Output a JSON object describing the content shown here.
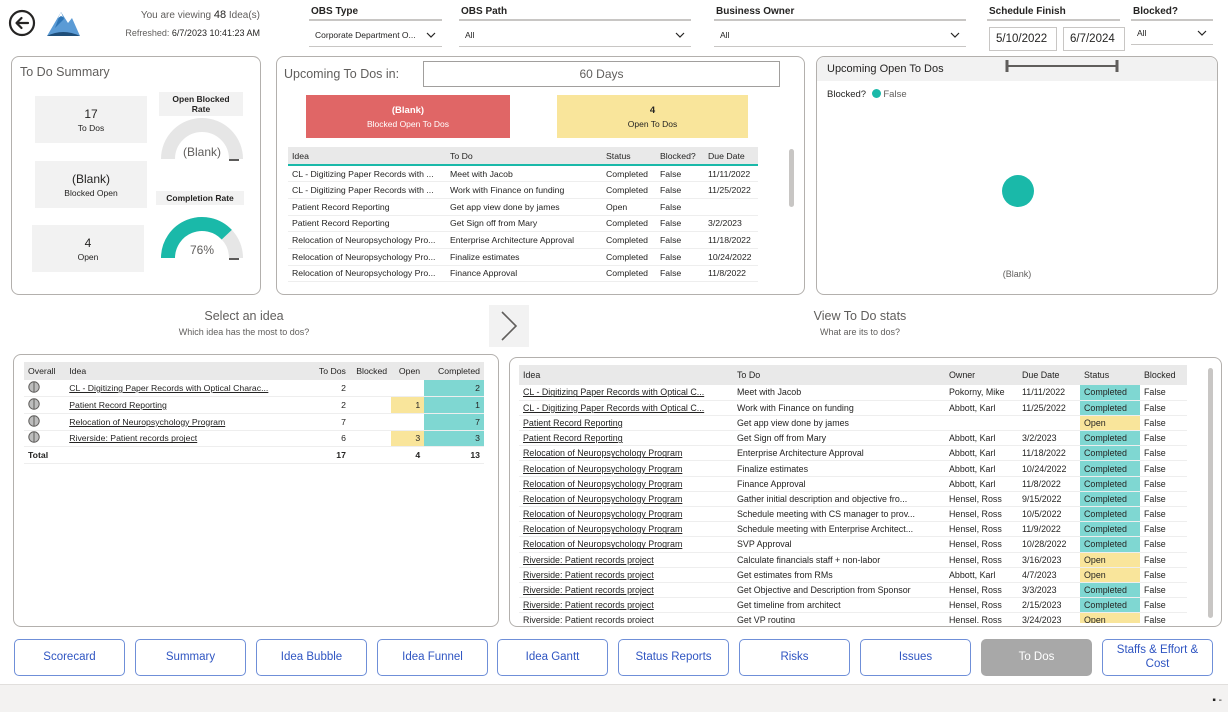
{
  "header": {
    "viewing_prefix": "You are viewing",
    "viewing_count": "48",
    "viewing_suffix": "Idea(s)",
    "refreshed_label": "Refreshed:",
    "refreshed_value": "6/7/2023 10:41:23 AM"
  },
  "filters": {
    "obs_type": {
      "label": "OBS Type",
      "value": "Corporate Department O..."
    },
    "obs_path": {
      "label": "OBS Path",
      "value": "All"
    },
    "business_owner": {
      "label": "Business Owner",
      "value": "All"
    },
    "schedule_finish": {
      "label": "Schedule Finish",
      "start": "5/10/2022",
      "end": "6/7/2024"
    },
    "blocked": {
      "label": "Blocked?",
      "value": "All"
    }
  },
  "todo_summary": {
    "title": "To Do Summary",
    "todos_value": "17",
    "todos_label": "To Dos",
    "blocked_value": "(Blank)",
    "blocked_label": "Blocked Open",
    "open_value": "4",
    "open_label": "Open",
    "open_blocked_rate_title": "Open Blocked Rate",
    "open_blocked_rate_value": "(Blank)",
    "completion_rate_title": "Completion Rate",
    "completion_rate_value": "76%",
    "completion_rate_fraction": 0.76
  },
  "upcoming": {
    "label": "Upcoming To Dos in:",
    "days": "60 Days",
    "blocked_card_value": "(Blank)",
    "blocked_card_label": "Blocked Open To Dos",
    "open_card_value": "4",
    "open_card_label": "Open To Dos",
    "columns": [
      "Idea",
      "To Do",
      "Status",
      "Blocked?",
      "Due Date"
    ],
    "rows": [
      [
        "CL - Digitizing Paper Records with ...",
        "Meet with Jacob",
        "Completed",
        "False",
        "11/11/2022"
      ],
      [
        "CL - Digitizing Paper Records with ...",
        "Work with Finance on funding",
        "Completed",
        "False",
        "11/25/2022"
      ],
      [
        "Patient Record Reporting",
        "Get app view done by james",
        "Open",
        "False",
        ""
      ],
      [
        "Patient Record Reporting",
        "Get Sign off from Mary",
        "Completed",
        "False",
        "3/2/2023"
      ],
      [
        "Relocation of Neuropsychology Pro...",
        "Enterprise Architecture Approval",
        "Completed",
        "False",
        "11/18/2022"
      ],
      [
        "Relocation of Neuropsychology Pro...",
        "Finalize estimates",
        "Completed",
        "False",
        "10/24/2022"
      ],
      [
        "Relocation of Neuropsychology Pro...",
        "Finance Approval",
        "Completed",
        "False",
        "11/8/2022"
      ]
    ]
  },
  "scatter": {
    "title": "Upcoming Open To Dos",
    "legend_label": "Blocked?",
    "legend_item": "False",
    "legend_color": "#1ab9a9",
    "category_label": "(Blank)"
  },
  "select_idea": {
    "title": "Select an idea",
    "subtitle": "Which idea has the most to dos?"
  },
  "view_stats": {
    "title": "View To Do stats",
    "subtitle": "What are its to dos?"
  },
  "ideas_table": {
    "columns": [
      "Overall",
      "Idea",
      "To Dos",
      "Blocked",
      "Open",
      "Completed"
    ],
    "rows": [
      {
        "idea": "CL - Digitizing Paper Records with Optical Charac...",
        "todos": "2",
        "blocked": "",
        "open": "",
        "completed": "2"
      },
      {
        "idea": "Patient Record Reporting",
        "todos": "2",
        "blocked": "",
        "open": "1",
        "completed": "1"
      },
      {
        "idea": "Relocation of Neuropsychology Program",
        "todos": "7",
        "blocked": "",
        "open": "",
        "completed": "7"
      },
      {
        "idea": "Riverside: Patient records project",
        "todos": "6",
        "blocked": "",
        "open": "3",
        "completed": "3"
      }
    ],
    "total": {
      "label": "Total",
      "todos": "17",
      "blocked": "",
      "open": "4",
      "completed": "13"
    }
  },
  "details_table": {
    "columns": [
      "Idea",
      "To Do",
      "Owner",
      "Due Date",
      "Status",
      "Blocked"
    ],
    "rows": [
      [
        "CL - Digitizing Paper Records with Optical C...",
        "Meet with Jacob",
        "Pokorny, Mike",
        "11/11/2022",
        "Completed",
        "False"
      ],
      [
        "CL - Digitizing Paper Records with Optical C...",
        "Work with Finance on funding",
        "Abbott, Karl",
        "11/25/2022",
        "Completed",
        "False"
      ],
      [
        "Patient Record Reporting",
        "Get app view done by james",
        "",
        "",
        "Open",
        "False"
      ],
      [
        "Patient Record Reporting",
        "Get Sign off from Mary",
        "Abbott, Karl",
        "3/2/2023",
        "Completed",
        "False"
      ],
      [
        "Relocation of Neuropsychology Program",
        "Enterprise Architecture Approval",
        "Abbott, Karl",
        "11/18/2022",
        "Completed",
        "False"
      ],
      [
        "Relocation of Neuropsychology Program",
        "Finalize estimates",
        "Abbott, Karl",
        "10/24/2022",
        "Completed",
        "False"
      ],
      [
        "Relocation of Neuropsychology Program",
        "Finance Approval",
        "Abbott, Karl",
        "11/8/2022",
        "Completed",
        "False"
      ],
      [
        "Relocation of Neuropsychology Program",
        "Gather initial description and objective fro...",
        "Hensel, Ross",
        "9/15/2022",
        "Completed",
        "False"
      ],
      [
        "Relocation of Neuropsychology Program",
        "Schedule meeting with CS manager to prov...",
        "Hensel, Ross",
        "10/5/2022",
        "Completed",
        "False"
      ],
      [
        "Relocation of Neuropsychology Program",
        "Schedule meeting with Enterprise Architect...",
        "Hensel, Ross",
        "11/9/2022",
        "Completed",
        "False"
      ],
      [
        "Relocation of Neuropsychology Program",
        "SVP Approval",
        "Hensel, Ross",
        "10/28/2022",
        "Completed",
        "False"
      ],
      [
        "Riverside: Patient records project",
        "Calculate financials staff + non-labor",
        "Hensel, Ross",
        "3/16/2023",
        "Open",
        "False"
      ],
      [
        "Riverside: Patient records project",
        "Get estimates from RMs",
        "Abbott, Karl",
        "4/7/2023",
        "Open",
        "False"
      ],
      [
        "Riverside: Patient records project",
        "Get Objective and Description from Sponsor",
        "Hensel, Ross",
        "3/3/2023",
        "Completed",
        "False"
      ],
      [
        "Riverside: Patient records project",
        "Get timeline from architect",
        "Hensel, Ross",
        "2/15/2023",
        "Completed",
        "False"
      ],
      [
        "Riverside: Patient records project",
        "Get VP routing",
        "Hensel, Ross",
        "3/24/2023",
        "Open",
        "False"
      ]
    ]
  },
  "nav": {
    "buttons": [
      "Scorecard",
      "Summary",
      "Idea Bubble",
      "Idea Funnel",
      "Idea Gantt",
      "Status Reports",
      "Risks",
      "Issues",
      "To Dos",
      "Staffs & Effort & Cost"
    ],
    "active": "To Dos"
  },
  "colors": {
    "accent_teal": "#1ab9a9",
    "completed_bg": "#7fd7d2",
    "open_bg": "#f9e59b",
    "blocked_card_bg": "#e06666",
    "open_card_bg": "#f9e59b",
    "nav_text": "#2f55c2"
  }
}
